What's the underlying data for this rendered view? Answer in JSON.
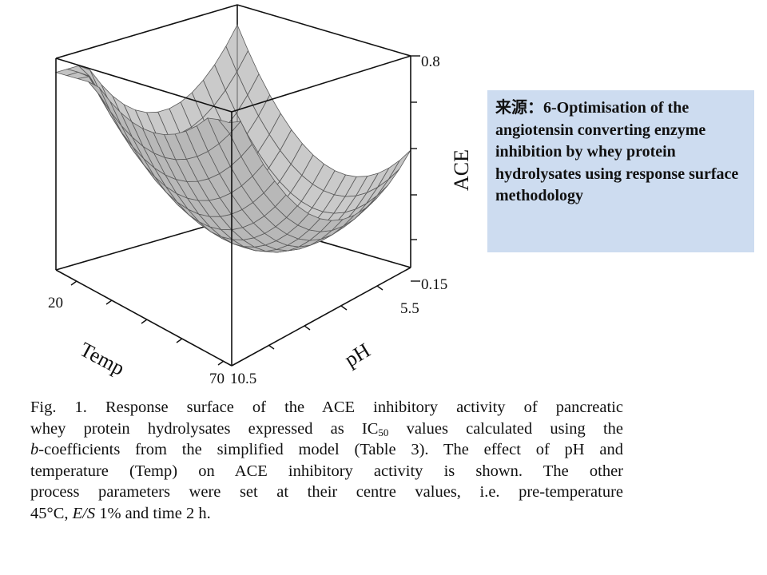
{
  "figure": {
    "z_axis": {
      "label": "ACE",
      "ticks": [
        "0.8",
        "0.15"
      ]
    },
    "temp_axis": {
      "label": "Temp",
      "ticks": [
        "20",
        "70"
      ]
    },
    "ph_axis": {
      "label": "pH",
      "ticks": [
        "5.5",
        "10.5"
      ]
    },
    "surface_color": "#b8b8b8",
    "grid_line_color": "#5a5a5a"
  },
  "caption": {
    "lines": [
      "Fig. 1.  Response surface of the ACE inhibitory activity of pancreatic",
      "whey protein hydrolysates expressed as IC",
      "values calculated using the",
      "50",
      "-coefficients from the simplified model (Table 3). The effect of pH and",
      "b",
      "temperature (Temp) on ACE inhibitory activity is shown. The other",
      "process parameters were set at their centre values, i.e. pre-temperature",
      "45°C,",
      "E/S",
      "1% and time 2 h."
    ]
  },
  "source_box": {
    "prefix": "来源：",
    "text": "6-Optimisation of the angiotensin converting enzyme inhibition by whey protein hydrolysates using response surface methodology",
    "background": "#cddcf0"
  }
}
